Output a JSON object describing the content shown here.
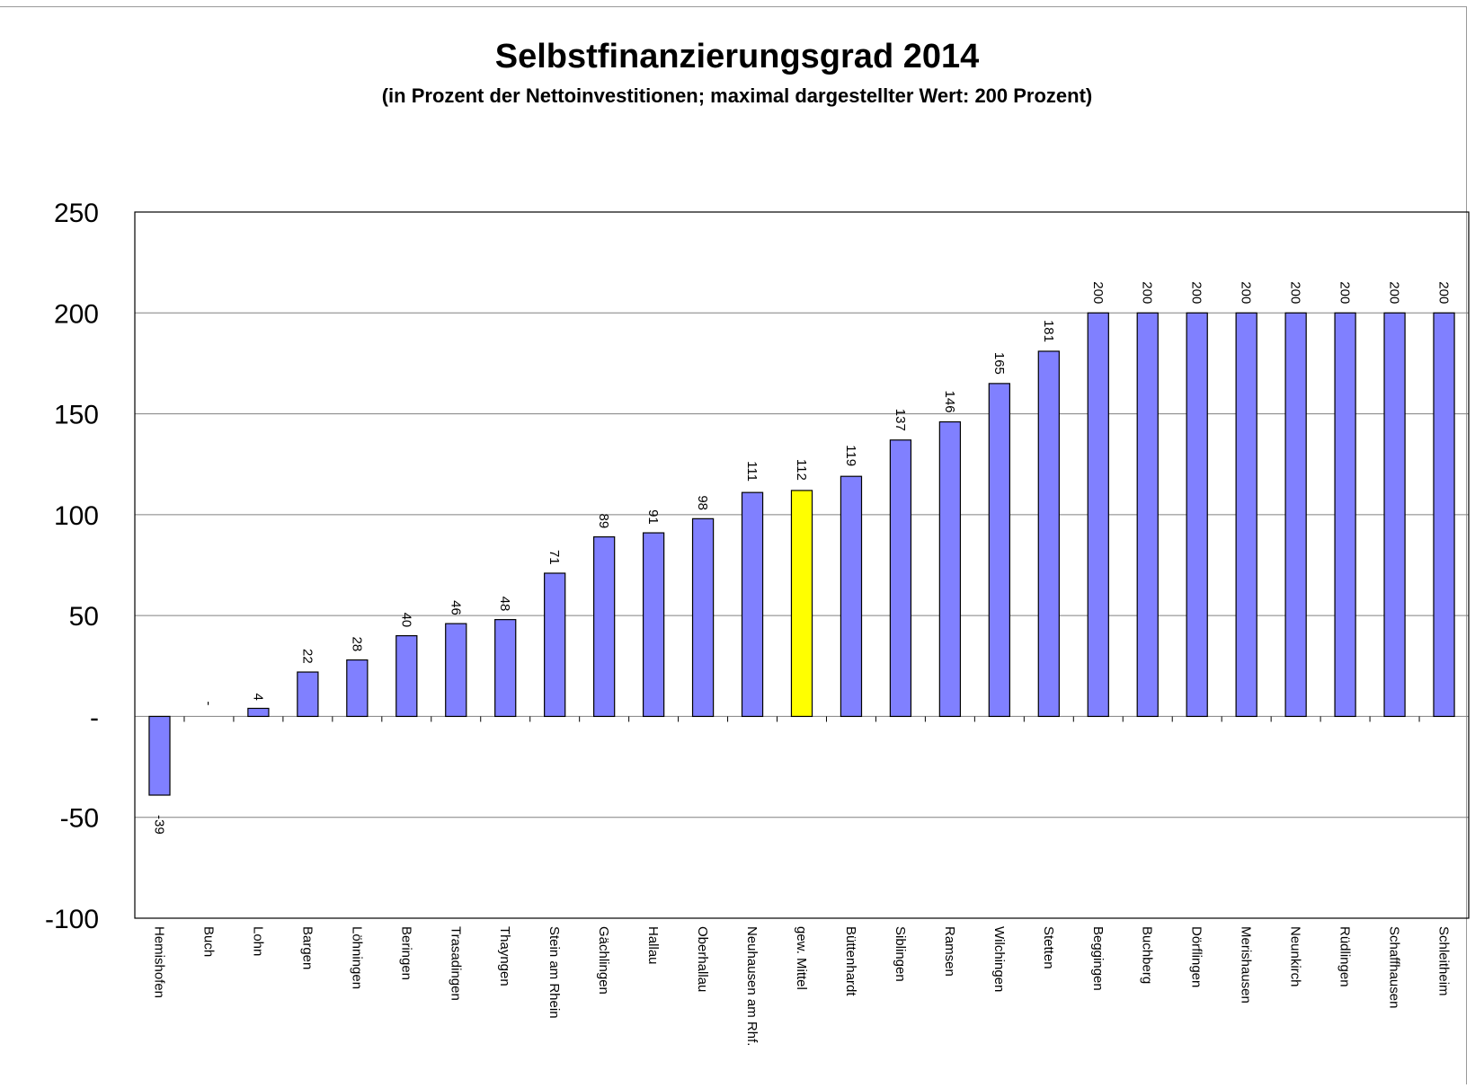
{
  "chart_data": {
    "type": "bar",
    "title": "Selbstfinanzierungsgrad 2014",
    "subtitle": "(in Prozent der Nettoinvestitionen; maximal dargestellter Wert: 200 Prozent)",
    "xlabel": "",
    "ylabel": "",
    "ylim": [
      -100,
      250
    ],
    "yticks": [
      {
        "value": 250,
        "label": "250"
      },
      {
        "value": 200,
        "label": "200"
      },
      {
        "value": 150,
        "label": "150"
      },
      {
        "value": 100,
        "label": "100"
      },
      {
        "value": 50,
        "label": "50"
      },
      {
        "value": 0,
        "label": "-"
      },
      {
        "value": -50,
        "label": "-50"
      },
      {
        "value": -100,
        "label": "-100"
      }
    ],
    "grid": true,
    "categories": [
      "Hemishofen",
      "Buch",
      "Lohn",
      "Bargen",
      "Löhningen",
      "Beringen",
      "Trasadingen",
      "Thayngen",
      "Stein am Rhein",
      "Gächlingen",
      "Hallau",
      "Oberhallau",
      "Neuhausen am Rhf.",
      "gew. Mittel",
      "Büttenhardt",
      "Siblingen",
      "Ramsen",
      "Wilchingen",
      "Stetten",
      "Beggingen",
      "Buchberg",
      "Dörflingen",
      "Merishausen",
      "Neunkirch",
      "Rüdlingen",
      "Schaffhausen",
      "Schleitheim"
    ],
    "values": [
      -39,
      0,
      4,
      22,
      28,
      40,
      46,
      48,
      71,
      89,
      91,
      98,
      111,
      112,
      119,
      137,
      146,
      165,
      181,
      200,
      200,
      200,
      200,
      200,
      200,
      200,
      200
    ],
    "data_labels": [
      "-39",
      "-",
      "4",
      "22",
      "28",
      "40",
      "46",
      "48",
      "71",
      "89",
      "91",
      "98",
      "111",
      "112",
      "119",
      "137",
      "146",
      "165",
      "181",
      "200",
      "200",
      "200",
      "200",
      "200",
      "200",
      "200",
      "200"
    ],
    "highlight_index": 13,
    "colors": {
      "bar": "#8080ff",
      "highlight": "#ffff00",
      "edge": "#000000",
      "grid": "#808080"
    }
  }
}
